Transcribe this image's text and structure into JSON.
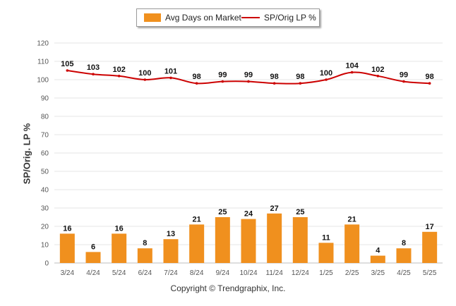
{
  "legend": {
    "bar_label": "Avg Days on Market",
    "line_label": "SP/Orig LP %"
  },
  "copyright": "Copyright © Trendgraphix, Inc.",
  "colors": {
    "bar": "#f0901e",
    "line": "#cc0000",
    "grid": "#e6e6e6"
  },
  "chart_data": {
    "type": "bar",
    "categories": [
      "3/24",
      "4/24",
      "5/24",
      "6/24",
      "7/24",
      "8/24",
      "9/24",
      "10/24",
      "11/24",
      "12/24",
      "1/25",
      "2/25",
      "3/25",
      "4/25",
      "5/25"
    ],
    "series": [
      {
        "name": "Avg Days on Market",
        "type": "bar",
        "values": [
          16,
          6,
          16,
          8,
          13,
          21,
          25,
          24,
          27,
          25,
          11,
          21,
          4,
          8,
          17
        ]
      },
      {
        "name": "SP/Orig LP %",
        "type": "line",
        "values": [
          105,
          103,
          102,
          100,
          101,
          98,
          99,
          99,
          98,
          98,
          100,
          104,
          102,
          99,
          98
        ]
      }
    ],
    "ylabel": "SP/Orig. LP %",
    "xlabel": "",
    "ylim": [
      0,
      120
    ],
    "yticks": [
      0,
      10,
      20,
      30,
      40,
      50,
      60,
      70,
      80,
      90,
      100,
      110,
      120
    ],
    "grid": true,
    "legend_position": "top-center"
  }
}
